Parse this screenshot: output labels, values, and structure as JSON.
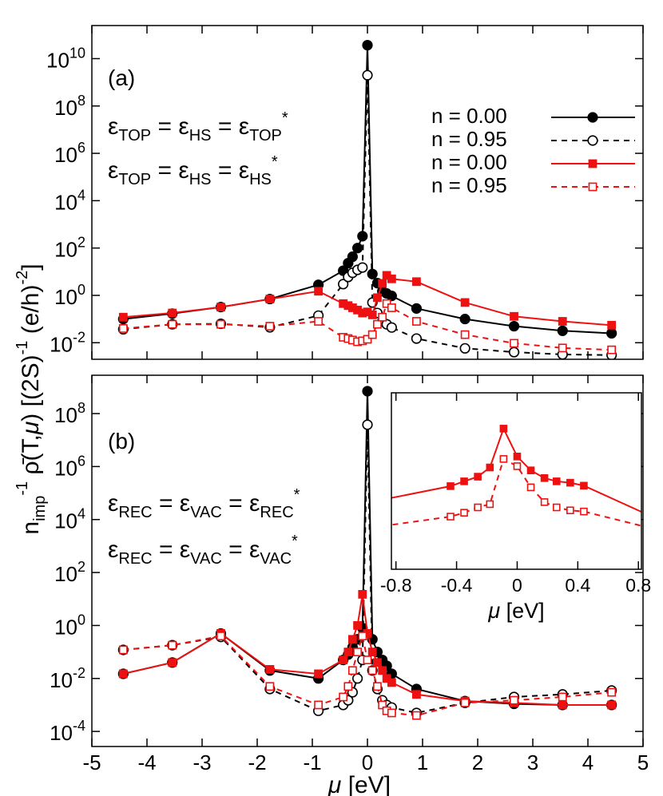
{
  "chart_data": [
    {
      "type": "line",
      "ylog": true,
      "legend": "upper right",
      "xlim": [
        -5,
        5
      ],
      "ylim": [
        0.002,
        250000000000.0
      ],
      "yticks": [
        {
          "value": 0.01,
          "label": "10",
          "sup": "-2"
        },
        {
          "value": 1,
          "label": "10",
          "sup": "0"
        },
        {
          "value": 100,
          "label": "10",
          "sup": "2"
        },
        {
          "value": 10000,
          "label": "10",
          "sup": "4"
        },
        {
          "value": 1000000,
          "label": "10",
          "sup": "6"
        },
        {
          "value": 100000000,
          "label": "10",
          "sup": "8"
        },
        {
          "value": 10000000000,
          "label": "10",
          "sup": "10"
        }
      ],
      "ylabel": {
        "parts": [
          {
            "text": "n"
          },
          {
            "text": "imp",
            "shift": "sub"
          },
          {
            "text": "-1",
            "shift": "super"
          },
          {
            "text": " ρ̄(T,"
          },
          {
            "text": "μ",
            "style": "italic"
          },
          {
            "text": ") [(2S)"
          },
          {
            "text": "-1",
            "shift": "super"
          },
          {
            "text": " (e/h)"
          },
          {
            "text": "-2",
            "shift": "super"
          },
          {
            "text": "]"
          }
        ]
      },
      "annotations": [
        {
          "color": "#000000",
          "parts": [
            {
              "text": "(a)"
            }
          ]
        },
        {
          "color": "#000000",
          "parts": [
            {
              "text": "ε"
            },
            {
              "text": "TOP",
              "shift": "sub"
            },
            {
              "text": " = ε"
            },
            {
              "text": "HS",
              "shift": "sub"
            },
            {
              "text": " = ε"
            },
            {
              "text": "TOP",
              "shift": "sub"
            },
            {
              "text": "*",
              "shift": "super"
            }
          ]
        },
        {
          "color": "#ee1111",
          "parts": [
            {
              "text": "ε"
            },
            {
              "text": "TOP",
              "shift": "sub"
            },
            {
              "text": " = ε"
            },
            {
              "text": "HS",
              "shift": "sub"
            },
            {
              "text": " = ε"
            },
            {
              "text": "HS",
              "shift": "sub"
            },
            {
              "text": "*",
              "shift": "super"
            }
          ]
        }
      ],
      "x": [
        -4.43,
        -3.54,
        -2.66,
        -1.77,
        -0.89,
        -0.44,
        -0.35,
        -0.27,
        -0.18,
        -0.09,
        0,
        0.09,
        0.18,
        0.27,
        0.35,
        0.44,
        0.89,
        1.77,
        2.66,
        3.54,
        4.43
      ],
      "series": [
        {
          "name": "n = 0.00",
          "color": "#000000",
          "marker": "circle",
          "filled": true,
          "linestyle": "solid",
          "values": [
            0.1,
            0.17,
            0.32,
            0.7,
            2.8,
            11,
            23,
            43,
            100,
            316,
            37000000000,
            8,
            3.3,
            1.5,
            1.2,
            0.95,
            0.28,
            0.1,
            0.05,
            0.032,
            0.025
          ]
        },
        {
          "name": "n = 0.95",
          "color": "#000000",
          "marker": "circle",
          "filled": false,
          "linestyle": "dashed",
          "values": [
            0.037,
            0.06,
            0.063,
            0.045,
            0.14,
            3,
            6,
            9,
            12,
            15,
            2000000000,
            0.5,
            0.18,
            0.08,
            0.06,
            0.044,
            0.015,
            0.0058,
            0.004,
            0.0032,
            0.003
          ]
        },
        {
          "name": "n = 0.00",
          "color": "#ee1111",
          "marker": "square",
          "filled": true,
          "linestyle": "solid",
          "values": [
            0.12,
            0.18,
            0.32,
            0.7,
            1.5,
            0.45,
            0.37,
            0.3,
            0.24,
            0.18,
            0.2,
            0.15,
            0.8,
            3.2,
            7,
            5,
            3.8,
            0.5,
            0.13,
            0.08,
            0.055
          ]
        },
        {
          "name": "n = 0.95",
          "color": "#ee1111",
          "marker": "square",
          "filled": false,
          "linestyle": "dashed",
          "values": [
            0.04,
            0.06,
            0.06,
            0.05,
            0.08,
            0.017,
            0.015,
            0.013,
            0.011,
            0.012,
            0.014,
            0.022,
            0.06,
            0.12,
            0.45,
            0.3,
            0.08,
            0.022,
            0.0095,
            0.006,
            0.005
          ]
        }
      ]
    },
    {
      "type": "line",
      "ylog": true,
      "xlim": [
        -5,
        5
      ],
      "ylim": [
        2.7e-05,
        2800000000
      ],
      "xticks": [
        -5,
        -4,
        -3,
        -2,
        -1,
        0,
        1,
        2,
        3,
        4,
        5
      ],
      "yticks": [
        {
          "value": 0.0001,
          "label": "10",
          "sup": "-4"
        },
        {
          "value": 0.01,
          "label": "10",
          "sup": "-2"
        },
        {
          "value": 1,
          "label": "10",
          "sup": "0"
        },
        {
          "value": 100,
          "label": "10",
          "sup": "2"
        },
        {
          "value": 10000,
          "label": "10",
          "sup": "4"
        },
        {
          "value": 1000000,
          "label": "10",
          "sup": "6"
        },
        {
          "value": 100000000,
          "label": "10",
          "sup": "8"
        }
      ],
      "xlabel": {
        "parts": [
          {
            "text": "μ",
            "style": "italic"
          },
          {
            "text": " [eV]"
          }
        ]
      },
      "annotations": [
        {
          "color": "#000000",
          "parts": [
            {
              "text": "(b)"
            }
          ]
        },
        {
          "color": "#000000",
          "parts": [
            {
              "text": "ε"
            },
            {
              "text": "REC",
              "shift": "sub"
            },
            {
              "text": " = ε"
            },
            {
              "text": "VAC",
              "shift": "sub"
            },
            {
              "text": " = ε"
            },
            {
              "text": "REC",
              "shift": "sub"
            },
            {
              "text": "*",
              "shift": "super"
            }
          ]
        },
        {
          "color": "#ee1111",
          "parts": [
            {
              "text": "ε"
            },
            {
              "text": "REC",
              "shift": "sub"
            },
            {
              "text": " = ε"
            },
            {
              "text": "VAC",
              "shift": "sub"
            },
            {
              "text": " = ε"
            },
            {
              "text": "VAC",
              "shift": "sub"
            },
            {
              "text": "*",
              "shift": "super"
            }
          ]
        }
      ],
      "x": [
        -4.43,
        -3.54,
        -2.66,
        -1.77,
        -0.89,
        -0.44,
        -0.35,
        -0.27,
        -0.18,
        -0.09,
        0,
        0.09,
        0.18,
        0.27,
        0.35,
        0.44,
        0.89,
        1.77,
        2.66,
        3.54,
        4.43
      ],
      "series": [
        {
          "color": "#000000",
          "marker": "circle",
          "filled": true,
          "linestyle": "solid",
          "values": [
            0.015,
            0.04,
            0.5,
            0.02,
            0.01,
            0.05,
            0.08,
            0.15,
            0.3,
            0.8,
            700000000,
            0.3,
            0.1,
            0.05,
            0.03,
            0.015,
            0.004,
            0.0014,
            0.0011,
            0.001,
            0.001
          ]
        },
        {
          "color": "#000000",
          "marker": "circle",
          "filled": false,
          "linestyle": "dashed",
          "values": [
            0.12,
            0.18,
            0.37,
            0.004,
            0.0006,
            0.001,
            0.0015,
            0.003,
            0.01,
            0.05,
            38000000,
            0.02,
            0.004,
            0.0015,
            0.001,
            0.0008,
            0.0005,
            0.0012,
            0.002,
            0.0025,
            0.0035
          ]
        },
        {
          "color": "#ee1111",
          "marker": "square",
          "filled": true,
          "linestyle": "solid",
          "values": [
            0.015,
            0.04,
            0.5,
            0.022,
            0.015,
            0.05,
            0.1,
            0.3,
            1,
            15,
            0.5,
            0.1,
            0.04,
            0.02,
            0.01,
            0.007,
            0.0025,
            0.0014,
            0.0012,
            0.001,
            0.001
          ]
        },
        {
          "color": "#ee1111",
          "marker": "square",
          "filled": false,
          "linestyle": "dashed",
          "values": [
            0.12,
            0.18,
            0.4,
            0.005,
            0.001,
            0.002,
            0.005,
            0.02,
            0.1,
            0.4,
            0.05,
            0.02,
            0.005,
            0.001,
            0.0006,
            0.0005,
            0.0004,
            0.0012,
            0.0015,
            0.002,
            0.003
          ]
        }
      ]
    },
    {
      "type": "line",
      "ylog": true,
      "xlim": [
        -0.83,
        0.82
      ],
      "ylim": [
        0.0003,
        30
      ],
      "xticks": [
        -0.8,
        -0.4,
        0,
        0.4,
        0.8
      ],
      "xlabel": {
        "parts": [
          {
            "text": "μ",
            "style": "italic"
          },
          {
            "text": " [eV]"
          }
        ]
      },
      "x": [
        -0.89,
        -0.44,
        -0.35,
        -0.26,
        -0.18,
        -0.09,
        0,
        0.09,
        0.18,
        0.26,
        0.35,
        0.44,
        0.89
      ],
      "series": [
        {
          "color": "#ee1111",
          "marker": "square",
          "filled": true,
          "linestyle": "solid",
          "values": [
            0.028,
            0.068,
            0.093,
            0.126,
            0.23,
            2.9,
            0.47,
            0.19,
            0.115,
            0.093,
            0.085,
            0.07,
            0.0093
          ]
        },
        {
          "color": "#ee1111",
          "marker": "square",
          "filled": false,
          "linestyle": "dashed",
          "values": [
            0.005,
            0.0093,
            0.012,
            0.017,
            0.021,
            0.4,
            0.25,
            0.063,
            0.024,
            0.017,
            0.014,
            0.013,
            0.0043
          ]
        }
      ]
    }
  ]
}
